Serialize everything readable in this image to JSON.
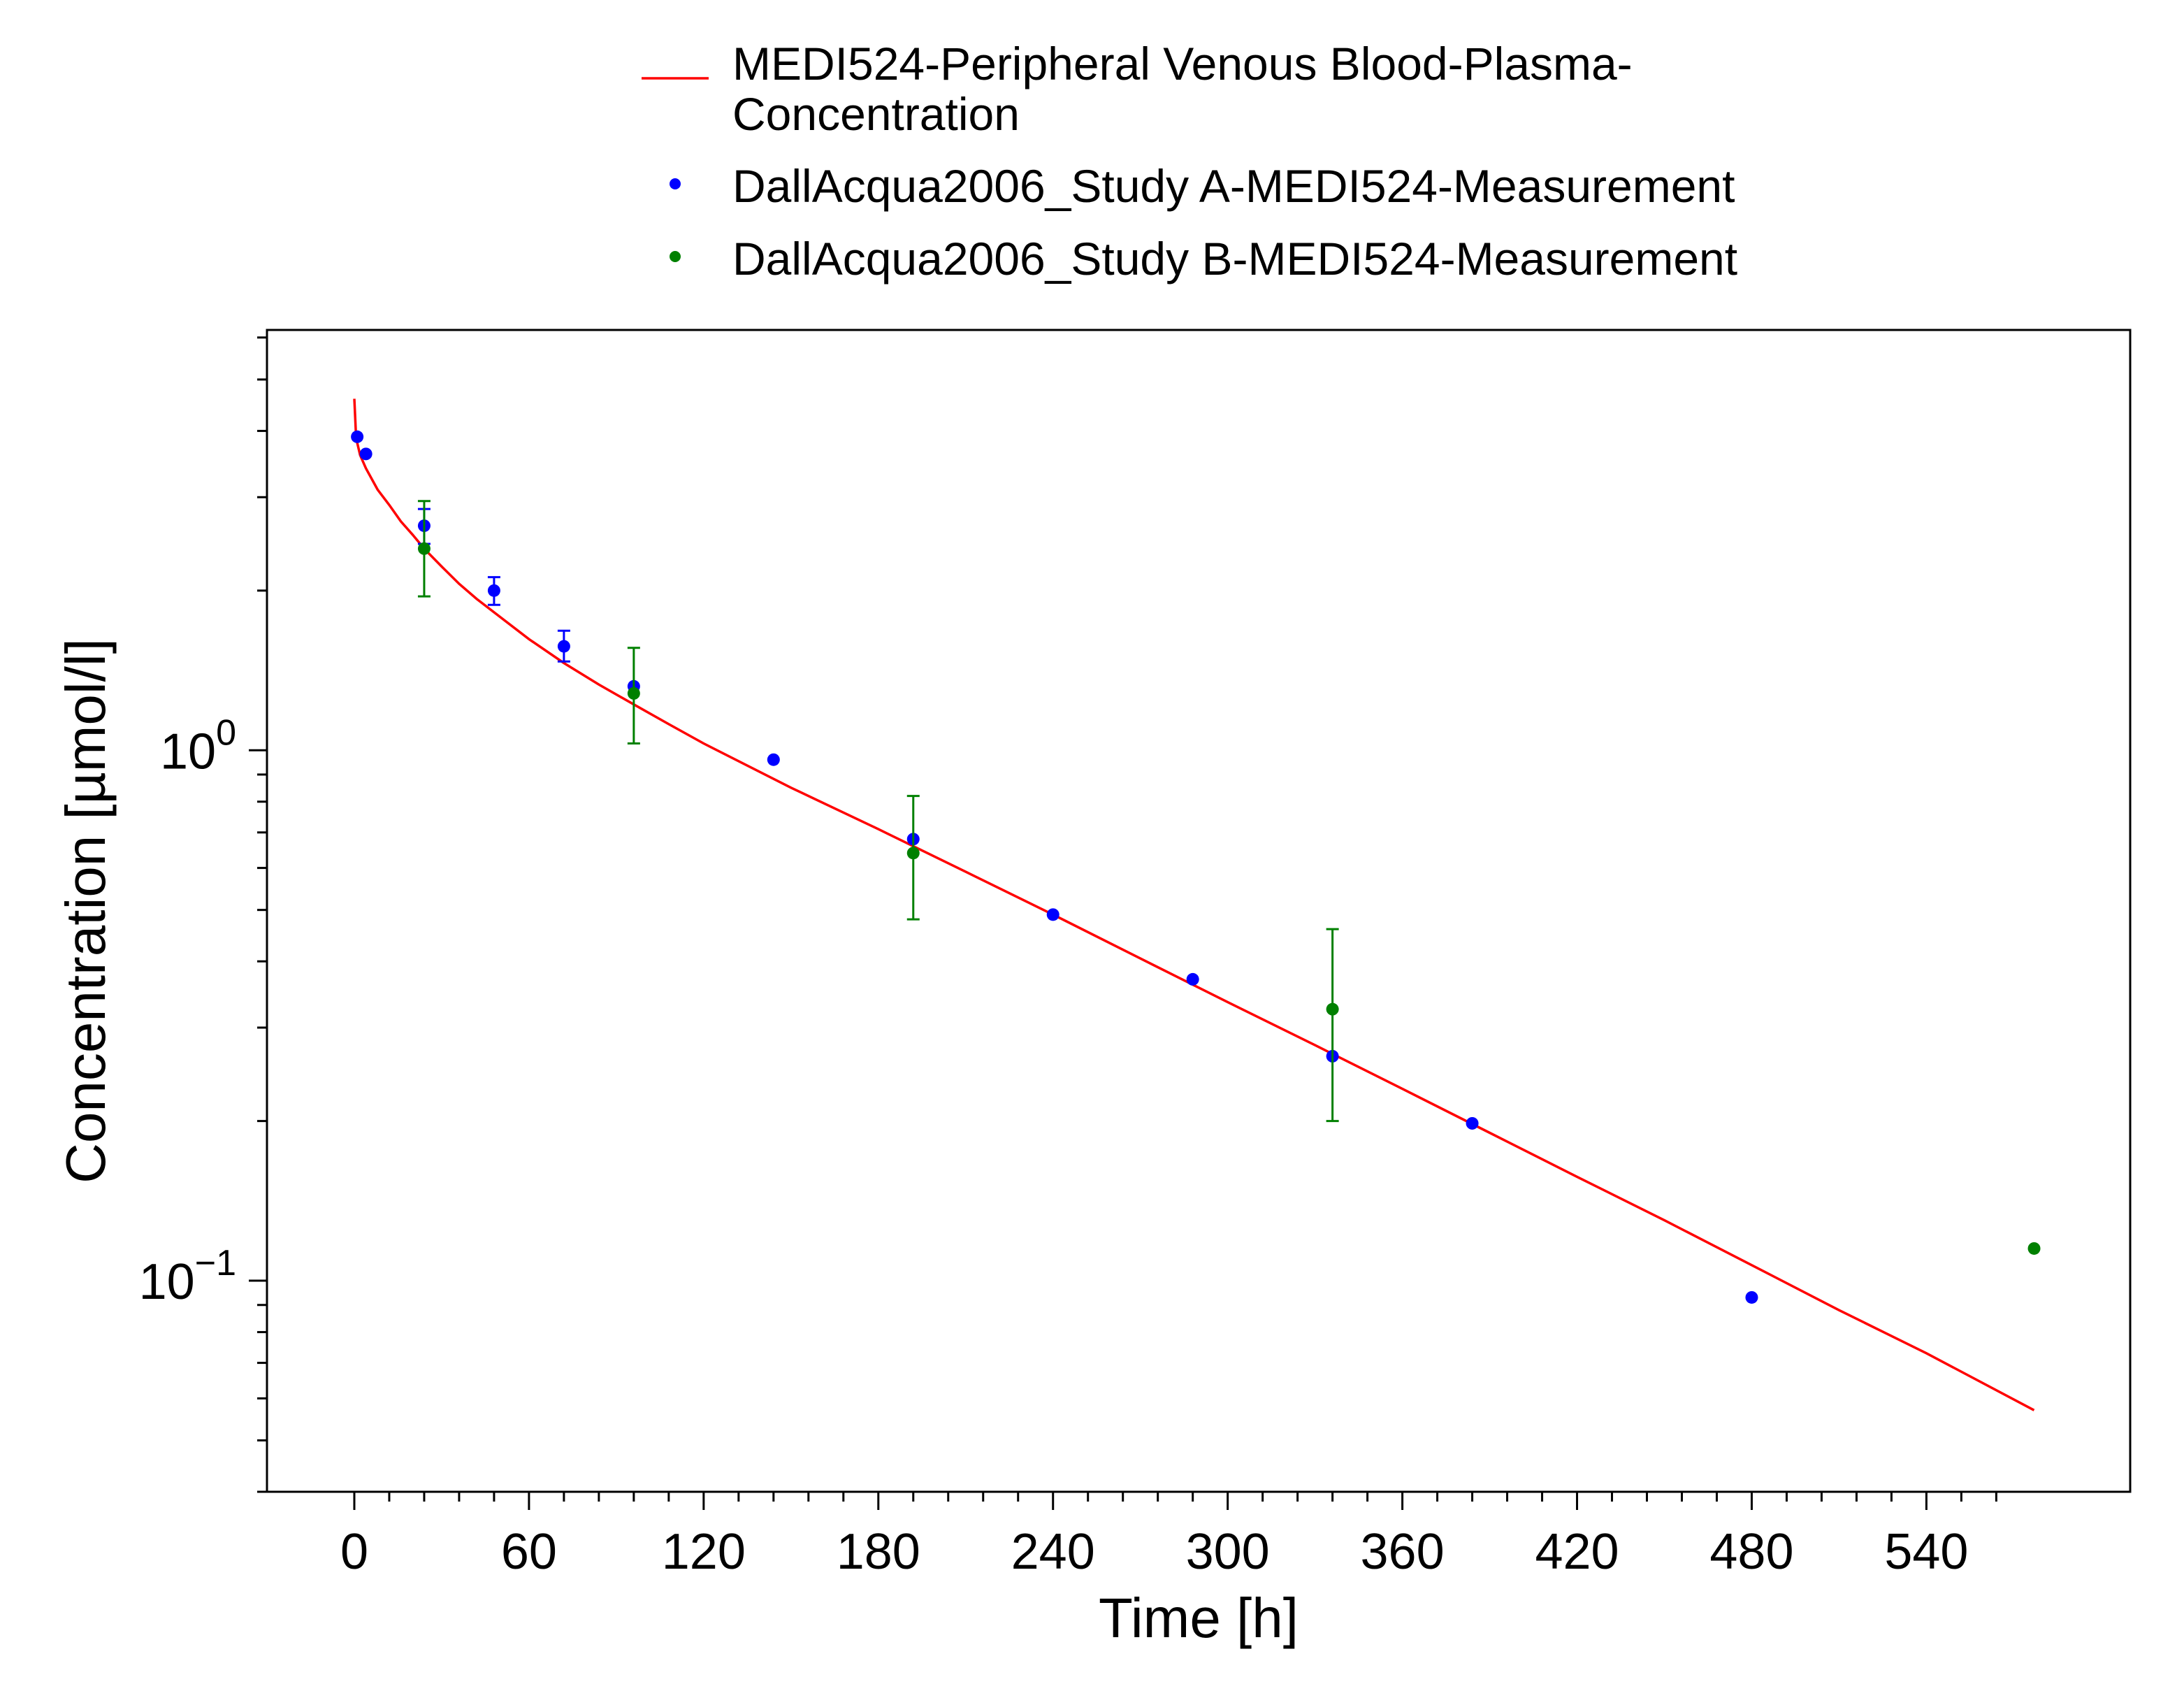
{
  "chart_data": {
    "type": "line",
    "xlabel": "Time [h]",
    "ylabel": "Concentration [µmol/l]",
    "x_scale": "linear",
    "y_scale": "log",
    "xlim": [
      -30,
      610
    ],
    "ylim": [
      0.04,
      6.2
    ],
    "x_ticks": [
      0,
      60,
      120,
      180,
      240,
      300,
      360,
      420,
      480,
      540
    ],
    "x_tick_labels": [
      "0",
      "60",
      "120",
      "180",
      "240",
      "300",
      "360",
      "420",
      "480",
      "540"
    ],
    "y_ticks": [
      0.1,
      1
    ],
    "y_tick_labels": [
      {
        "base": "10",
        "exp": "−1"
      },
      {
        "base": "10",
        "exp": "0"
      }
    ],
    "grid": false,
    "legend_position": "top",
    "colors": {
      "simulation": "#ff0000",
      "study_a": "#0000ff",
      "study_b": "#008000"
    },
    "series": [
      {
        "name": "MEDI524-Peripheral Venous Blood-Plasma-Concentration",
        "name_lines": [
          "MEDI524-Peripheral Venous Blood-Plasma-",
          "Concentration"
        ],
        "kind": "line",
        "color": "#ff0000",
        "x": [
          0,
          0.5,
          1,
          2,
          4,
          8,
          12,
          16,
          20,
          24,
          30,
          36,
          42,
          48,
          60,
          72,
          84,
          96,
          108,
          120,
          150,
          180,
          210,
          240,
          270,
          300,
          330,
          360,
          390,
          420,
          450,
          480,
          510,
          540,
          577
        ],
        "y": [
          4.6,
          4.0,
          3.8,
          3.6,
          3.4,
          3.1,
          2.9,
          2.7,
          2.55,
          2.4,
          2.22,
          2.06,
          1.93,
          1.82,
          1.62,
          1.46,
          1.33,
          1.22,
          1.12,
          1.03,
          0.85,
          0.71,
          0.59,
          0.49,
          0.405,
          0.335,
          0.278,
          0.23,
          0.19,
          0.157,
          0.13,
          0.107,
          0.088,
          0.073,
          0.057
        ]
      },
      {
        "name": "DallAcqua2006_Study A-MEDI524-Measurement",
        "kind": "scatter",
        "color": "#0000ff",
        "points": [
          {
            "x": 1,
            "y": 3.9
          },
          {
            "x": 4,
            "y": 3.62
          },
          {
            "x": 24,
            "y": 2.65,
            "err_low": 2.45,
            "err_high": 2.85
          },
          {
            "x": 48,
            "y": 2.0,
            "err_low": 1.88,
            "err_high": 2.12
          },
          {
            "x": 72,
            "y": 1.57,
            "err_low": 1.47,
            "err_high": 1.68
          },
          {
            "x": 96,
            "y": 1.32
          },
          {
            "x": 144,
            "y": 0.96
          },
          {
            "x": 192,
            "y": 0.68
          },
          {
            "x": 240,
            "y": 0.49
          },
          {
            "x": 288,
            "y": 0.37
          },
          {
            "x": 336,
            "y": 0.265
          },
          {
            "x": 384,
            "y": 0.198
          },
          {
            "x": 480,
            "y": 0.093
          }
        ]
      },
      {
        "name": "DallAcqua2006_Study B-MEDI524-Measurement",
        "kind": "scatter",
        "color": "#008000",
        "points": [
          {
            "x": 24,
            "y": 2.4,
            "err_low": 1.95,
            "err_high": 2.95
          },
          {
            "x": 96,
            "y": 1.28,
            "err_low": 1.03,
            "err_high": 1.56
          },
          {
            "x": 192,
            "y": 0.64,
            "err_low": 0.48,
            "err_high": 0.82
          },
          {
            "x": 336,
            "y": 0.325,
            "err_low": 0.2,
            "err_high": 0.46
          },
          {
            "x": 577,
            "y": 0.115
          }
        ]
      }
    ]
  }
}
